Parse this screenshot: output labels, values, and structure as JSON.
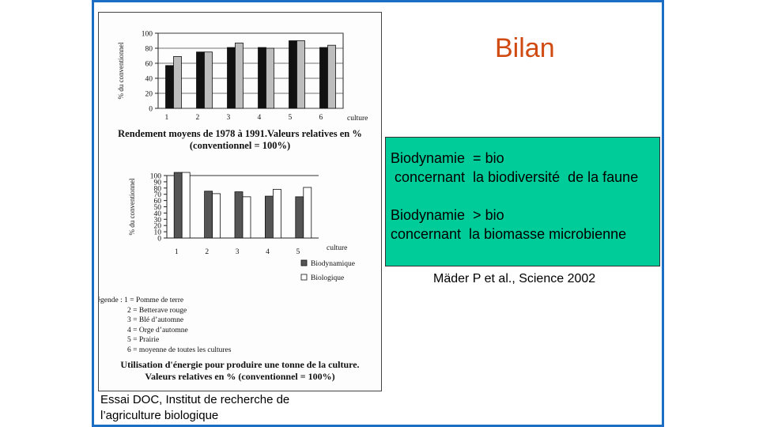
{
  "slide": {
    "title": "Bilan",
    "box_lines": [
      "Biodynamie  = bio",
      " concernant  la biodiversité  de la faune",
      "",
      "Biodynamie  > bio",
      "concernant  la biomasse microbienne"
    ],
    "reference": "Mäder P et al., Science 2002",
    "source_caption": "Essai DOC, Institut de recherche de l’agriculture biologique",
    "colors": {
      "frame": "#1c6ec4",
      "title": "#d04a12",
      "box": "#00cc99"
    }
  },
  "figure": {
    "caption1_line1": "Rendement moyens de 1978 à 1991.Valeurs relatives en %",
    "caption1_line2": "(conventionnel = 100%)",
    "legend_title": "Légende :",
    "legend_items": [
      "1 = Pomme de terre",
      "2 = Betterave rouge",
      "3 = Blé d’automne",
      "4 = Orge d’automne",
      "5 = Prairie",
      "6 = moyenne de toutes les cultures"
    ],
    "caption2_line1": "Utilisation d'énergie pour produire une tonne de la culture.",
    "caption2_line2": "Valeurs relatives en % (conventionnel = 100%)"
  },
  "chart_data": [
    {
      "type": "bar",
      "ylabel": "% du conventionnel",
      "xlabel": "culture",
      "categories": [
        "1",
        "2",
        "3",
        "4",
        "5",
        "6"
      ],
      "ylim": [
        0,
        100
      ],
      "yticks": [
        0,
        20,
        40,
        60,
        80,
        100
      ],
      "series": [
        {
          "values": [
            57,
            75,
            81,
            81,
            90,
            81
          ],
          "color": "#111111"
        },
        {
          "values": [
            69,
            75,
            87,
            80,
            90,
            84
          ],
          "color": "#bdbdbd"
        }
      ],
      "grid": true
    },
    {
      "type": "bar",
      "ylabel": "% du conventionnel",
      "xlabel": "culture",
      "categories": [
        "1",
        "2",
        "3",
        "4",
        "5"
      ],
      "ylim": [
        0,
        100
      ],
      "yticks": [
        0,
        10,
        20,
        30,
        40,
        50,
        60,
        70,
        80,
        90,
        100
      ],
      "reference_line": 100,
      "series": [
        {
          "name": "Biodynamique",
          "values": [
            105,
            75,
            74,
            67,
            66
          ],
          "color": "#555555"
        },
        {
          "name": "Biologique",
          "values": [
            105,
            71,
            66,
            78,
            81
          ],
          "color": "#ffffff"
        }
      ],
      "legend": "bottom-right"
    }
  ]
}
